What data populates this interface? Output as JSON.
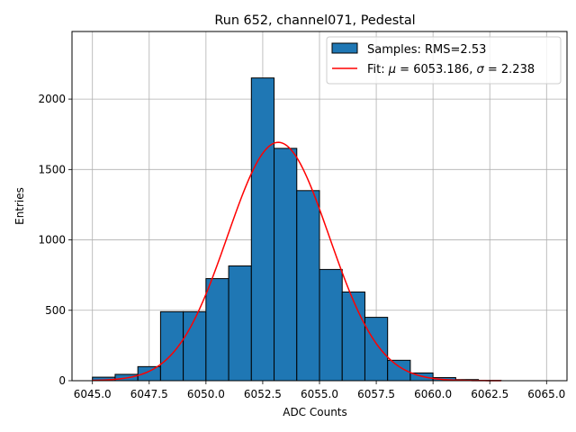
{
  "chart_data": {
    "type": "bar",
    "title": "Run 652, channel071, Pedestal",
    "xlabel": "ADC Counts",
    "ylabel": "Entries",
    "xlim": [
      6044.1,
      6065.9
    ],
    "ylim": [
      0,
      2480
    ],
    "grid": true,
    "legend_position": "top-right",
    "xticks": [
      6045.0,
      6047.5,
      6050.0,
      6052.5,
      6055.0,
      6057.5,
      6060.0,
      6062.5,
      6065.0
    ],
    "xtick_labels": [
      "6045.0",
      "6047.5",
      "6050.0",
      "6052.5",
      "6055.0",
      "6057.5",
      "6060.0",
      "6062.5",
      "6065.0"
    ],
    "yticks": [
      0,
      500,
      1000,
      1500,
      2000
    ],
    "ytick_labels": [
      "0",
      "500",
      "1000",
      "1500",
      "2000"
    ],
    "series": [
      {
        "name": "Samples: RMS=2.53",
        "kind": "histogram",
        "bin_edges": [
          6045,
          6046,
          6047,
          6048,
          6049,
          6050,
          6051,
          6052,
          6053,
          6054,
          6055,
          6056,
          6057,
          6058,
          6059,
          6060,
          6061,
          6062,
          6063,
          6064,
          6065
        ],
        "values": [
          25,
          45,
          100,
          490,
          490,
          725,
          815,
          2150,
          1650,
          1350,
          790,
          630,
          450,
          145,
          55,
          22,
          8,
          2,
          0,
          0
        ],
        "color": "#1f77b4",
        "edgecolor": "#000000"
      },
      {
        "name": "Fit: μ = 6053.186, σ = 2.238",
        "kind": "gaussian_fit",
        "mu": 6053.186,
        "sigma": 2.238,
        "amplitude": 1693,
        "x_range": [
          6045,
          6063
        ],
        "color": "#ff0000"
      }
    ],
    "legend": [
      {
        "label": "Samples: RMS=2.53",
        "kind": "patch"
      },
      {
        "label_prefix": "Fit: ",
        "mu_symbol": "μ",
        "mu_text": " = 6053.186, ",
        "sigma_symbol": "σ",
        "sigma_text": " = 2.238",
        "kind": "line"
      }
    ]
  }
}
